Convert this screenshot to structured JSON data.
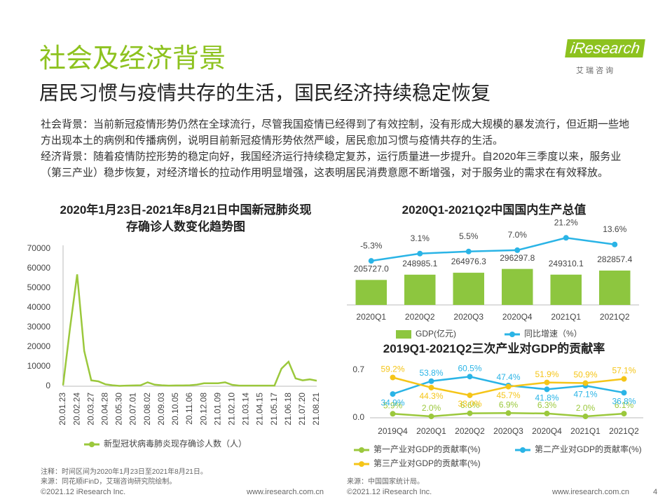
{
  "header": {
    "title": "社会及经济背景",
    "subtitle": "居民习惯与疫情共存的生活，国民经济持续稳定恢复",
    "logo": "iResearch",
    "logo_cn": "艾 瑞 咨 询"
  },
  "paragraphs": [
    "社会背景：当前新冠疫情形势仍然在全球流行，尽管我国疫情已经得到了有效控制，没有形成大规模的暴发流行，但近期一些地方出现本土的病例和传播病例，说明目前新冠疫情形势依然严峻，居民愈加习惯与疫情共存的生活。",
    "经济背景：随着疫情防控形势的稳定向好，我国经济运行持续稳定复苏，运行质量进一步提升。自2020年三季度以来，服务业（第三产业）稳步恢复，对经济增长的拉动作用明显增强，这表明居民消费意愿不断增强，对于服务业的需求在有效释放。"
  ],
  "chart_data": [
    {
      "type": "line",
      "title": "2020年1月23日-2021年8月21日中国新冠肺炎现存确诊人数变化趋势图",
      "categories": [
        "20.01.23",
        null,
        "20.02.24",
        null,
        "20.03.27",
        null,
        "20.04.28",
        null,
        "20.05.30",
        null,
        "20.07.01",
        null,
        "20.08.02",
        null,
        "20.09.03",
        null,
        "20.10.05",
        null,
        "20.11.06",
        null,
        "20.12.08",
        null,
        "21.01.09",
        null,
        "21.02.10",
        null,
        "21.03.14",
        null,
        "21.04.15",
        null,
        "21.05.17",
        null,
        "21.06.18",
        null,
        "21.07.20",
        null,
        "21.08.21"
      ],
      "series": [
        {
          "name": "新型冠状病毒肺炎现存确诊人数（人）",
          "color": "#9bc83c",
          "values": [
            500,
            30000,
            57000,
            18000,
            3000,
            2500,
            1000,
            500,
            200,
            300,
            400,
            500,
            2000,
            800,
            500,
            300,
            400,
            400,
            500,
            800,
            1500,
            1500,
            1500,
            2000,
            700,
            300,
            300,
            300,
            300,
            300,
            300,
            9000,
            12500,
            4000,
            3000,
            3500,
            2800
          ]
        }
      ],
      "ylim": [
        0,
        70000
      ],
      "yticks": [
        0,
        10000,
        20000,
        30000,
        40000,
        50000,
        60000,
        70000
      ],
      "legend": "bottom"
    },
    {
      "type": "bar_line",
      "title": "2020Q1-2021Q2中国国内生产总值",
      "categories": [
        "2020Q1",
        "2020Q2",
        "2020Q3",
        "2020Q4",
        "2021Q1",
        "2021Q2"
      ],
      "series": [
        {
          "name": "GDP(亿元)",
          "type": "bar",
          "color": "#8dc63f",
          "values": [
            205727.0,
            248985.1,
            264976.3,
            296297.8,
            249310.1,
            282857.4
          ],
          "value_labels": [
            "205727.0",
            "248985.1",
            "264976.3",
            "296297.8",
            "249310.1",
            "282857.4"
          ]
        },
        {
          "name": "同比增速（%）",
          "type": "line",
          "axis": "y2",
          "color": "#2ab4e6",
          "values": [
            -5.3,
            3.1,
            5.5,
            7.0,
            21.2,
            13.6
          ],
          "value_labels": [
            "-5.3%",
            "3.1%",
            "5.5%",
            "7.0%",
            "21.2%",
            "13.6%"
          ]
        }
      ],
      "ylim": [
        0,
        300000
      ],
      "y2lim": [
        -10,
        40
      ],
      "legend": "bottom"
    },
    {
      "type": "line",
      "title": "2019Q1-2021Q2三次产业对GDP的贡献率",
      "categories": [
        "2019Q4",
        "2020Q1",
        "2020Q2",
        "2020Q3",
        "2020Q4",
        "2021Q1",
        "2021Q2"
      ],
      "series": [
        {
          "name": "第一产业对GDP的贡献率(%)",
          "color": "#9bc83c",
          "values": [
            0.059,
            0.02,
            0.066,
            0.069,
            0.063,
            0.02,
            0.061
          ],
          "value_labels": [
            "5.9%",
            "2.0%",
            "6.6%",
            "6.9%",
            "6.3%",
            "2.0%",
            "6.1%"
          ]
        },
        {
          "name": "第二产业对GDP的贡献率(%)",
          "color": "#2ab4e6",
          "values": [
            0.349,
            0.538,
            0.605,
            0.474,
            0.418,
            0.471,
            0.368
          ],
          "value_labels": [
            "34.9%",
            "53.8%",
            "60.5%",
            "47.4%",
            "41.8%",
            "47.1%",
            "36.8%"
          ]
        },
        {
          "name": "第三产业对GDP的贡献率(%)",
          "color": "#f5c518",
          "values": [
            0.592,
            0.443,
            0.33,
            0.457,
            0.519,
            0.509,
            0.571
          ],
          "value_labels": [
            "59.2%",
            "44.3%",
            "33.0%",
            "45.7%",
            "51.9%",
            "50.9%",
            "57.1%"
          ]
        }
      ],
      "ylim": [
        0,
        0.7
      ],
      "yticks": [
        {
          "value": 0,
          "label": "0.0"
        },
        {
          "value": 0.7,
          "label": "0.7"
        }
      ],
      "legend": "bottom"
    }
  ],
  "notes": {
    "left": [
      "注释：时间区间为2020年1月23日至2021年8月21日。",
      "来源：同花顺iFinD，艾瑞咨询研究院绘制。"
    ],
    "right": "来源：中国国家统计局。"
  },
  "footer": {
    "copyright_left": "©2021.12 iResearch Inc.",
    "url_left": "www.iresearch.com.cn",
    "copyright_right": "©2021.12 iResearch Inc.",
    "url_right": "www.iresearch.com.cn",
    "page": 4
  }
}
